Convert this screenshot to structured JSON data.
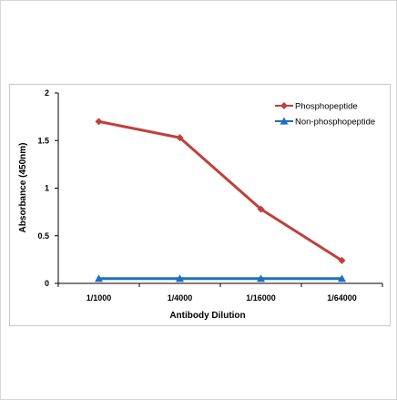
{
  "chart_data": {
    "type": "line",
    "categories": [
      "1/1000",
      "1/4000",
      "1/16000",
      "1/64000"
    ],
    "series": [
      {
        "name": "Phosphopeptide",
        "values": [
          1.7,
          1.53,
          0.78,
          0.24
        ],
        "color": "#c0403c",
        "marker": "diamond"
      },
      {
        "name": "Non-phosphopeptide",
        "values": [
          0.05,
          0.05,
          0.05,
          0.05
        ],
        "color": "#1f6fbf",
        "marker": "triangle"
      }
    ],
    "xlabel": "Antibody Dilution",
    "ylabel": "Absorbance (450nm)",
    "ylim": [
      0,
      2
    ],
    "yticks": [
      "0",
      "0.5",
      "1",
      "1.5",
      "2"
    ],
    "grid": false,
    "legend_position": "top-right"
  }
}
